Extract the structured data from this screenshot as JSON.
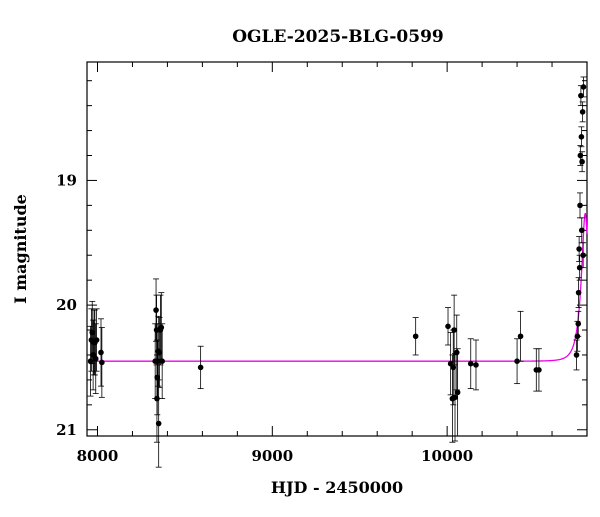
{
  "chart_data": {
    "type": "scatter",
    "title": "OGLE-2025-BLG-0599",
    "xlabel": "HJD - 2450000",
    "ylabel": "I magnitude",
    "xlim": [
      7940,
      10800
    ],
    "ylim": [
      21.05,
      18.05
    ],
    "y_inverted": true,
    "x_ticks": [
      8000,
      9000,
      10000
    ],
    "y_ticks": [
      19,
      20,
      21
    ],
    "grid": false,
    "legend": "none",
    "colors": {
      "points": "#000000",
      "model": "#ee00ee"
    },
    "series": [
      {
        "type": "errorbar",
        "x": [
          7960,
          7965,
          7970,
          7975,
          7980,
          7985,
          7990,
          7995,
          8020,
          8025,
          8330,
          8335,
          8338,
          8340,
          8342,
          8345,
          8348,
          8350,
          8355,
          8360,
          8365,
          8370,
          8590,
          9820,
          10005,
          10020,
          10030,
          10035,
          10040,
          10045,
          10055,
          10060,
          10135,
          10165,
          10400,
          10420,
          10510,
          10525,
          10740,
          10745,
          10750,
          10752,
          10755,
          10758,
          10760,
          10762,
          10765,
          10768,
          10770,
          10772,
          10775,
          10778,
          10780
        ],
        "y": [
          20.45,
          20.28,
          20.22,
          20.4,
          20.3,
          20.3,
          20.43,
          20.28,
          20.38,
          20.46,
          20.45,
          20.04,
          20.2,
          20.75,
          20.58,
          20.45,
          20.37,
          20.95,
          20.38,
          20.2,
          20.18,
          20.45,
          20.5,
          20.25,
          20.17,
          20.47,
          20.75,
          20.5,
          20.2,
          20.74,
          20.38,
          20.7,
          20.47,
          20.48,
          20.45,
          20.25,
          20.52,
          20.52,
          20.4,
          20.25,
          20.15,
          19.9,
          19.55,
          19.7,
          19.2,
          18.8,
          18.32,
          18.65,
          19.4,
          18.85,
          18.45,
          19.6,
          18.25
        ],
        "err": [
          0.28,
          0.25,
          0.25,
          0.28,
          0.26,
          0.26,
          0.28,
          0.25,
          0.27,
          0.28,
          0.3,
          0.25,
          0.28,
          0.35,
          0.3,
          0.3,
          0.28,
          0.35,
          0.28,
          0.28,
          0.28,
          0.3,
          0.17,
          0.15,
          0.15,
          0.25,
          0.35,
          0.3,
          0.28,
          0.35,
          0.3,
          0.35,
          0.2,
          0.2,
          0.18,
          0.2,
          0.17,
          0.17,
          0.12,
          0.12,
          0.1,
          0.12,
          0.1,
          0.1,
          0.1,
          0.08,
          0.08,
          0.08,
          0.1,
          0.08,
          0.08,
          0.1,
          0.08
        ]
      },
      {
        "type": "line",
        "model": "point-lens microlensing",
        "baseline_mag": 20.45,
        "t0": 10790,
        "u0": 0.35,
        "tE": 45,
        "x_range": [
          7940,
          10800
        ]
      }
    ]
  }
}
